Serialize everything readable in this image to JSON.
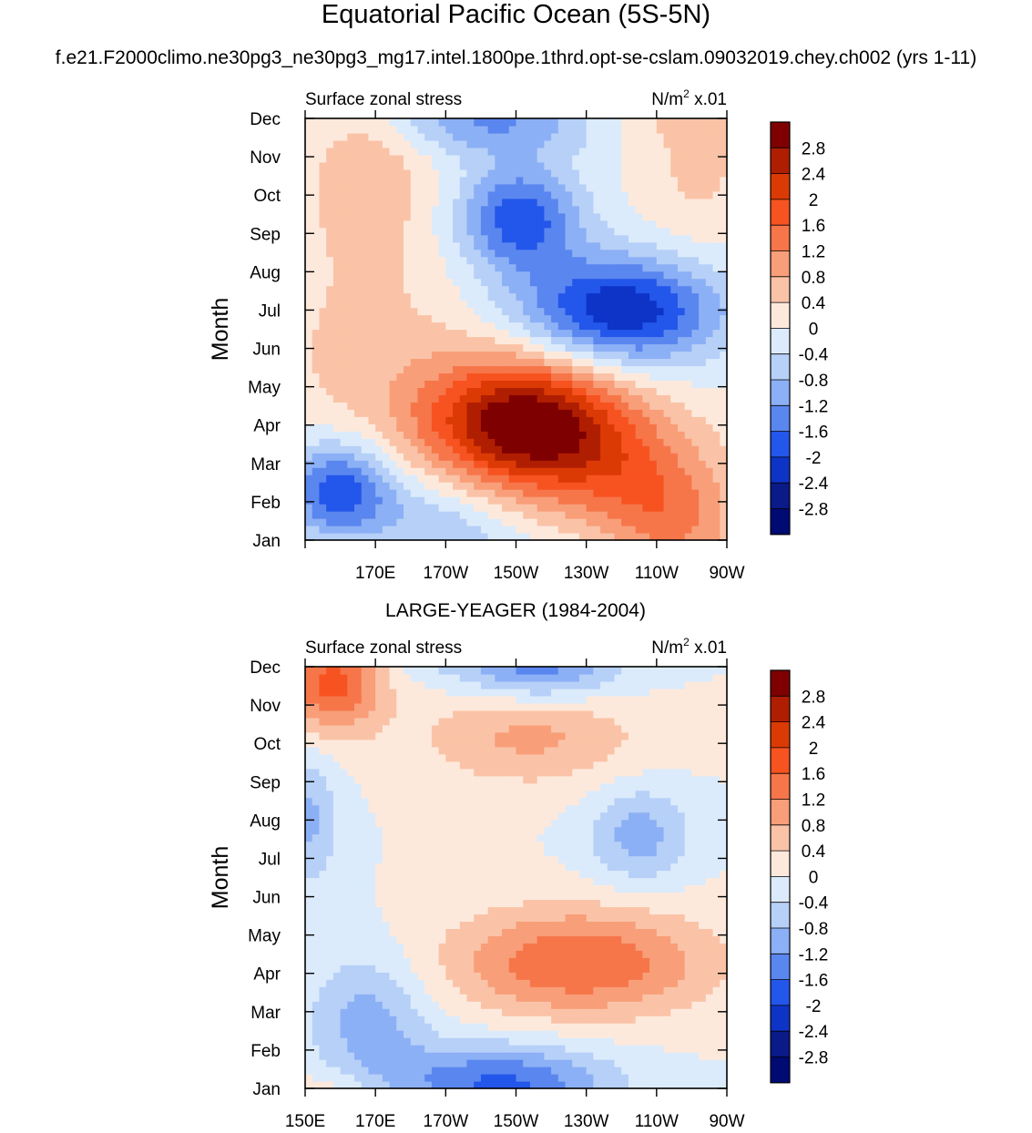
{
  "title": "Equatorial Pacific Ocean (5S-5N)",
  "subtitle": "f.e21.F2000climo.ne30pg3_ne30pg3_mg17.intel.1800pe.1thrd.opt-se-cslam.09032019.chey.ch002 (yrs 1-11)",
  "colorbar": {
    "labels": [
      "2.8",
      "2.4",
      "2",
      "1.6",
      "1.2",
      "0.8",
      "0.4",
      "0",
      "-0.4",
      "-0.8",
      "-1.2",
      "-1.6",
      "-2",
      "-2.4",
      "-2.8"
    ],
    "colors": [
      "#7f0000",
      "#b01e02",
      "#dc3a05",
      "#f75320",
      "#f6764a",
      "#f89e79",
      "#fac3a7",
      "#fde9dc",
      "#dbebfb",
      "#b7d0f8",
      "#8cb0f5",
      "#5a86ef",
      "#2356ea",
      "#0d34c6",
      "#0a1a88",
      "#000a73"
    ]
  },
  "chart_data": [
    {
      "type": "heatmap",
      "panel_title": "",
      "left_label": "Surface zonal stress",
      "right_label_main": "N/m",
      "right_label_sup": "2",
      "right_label_tail": " x.01",
      "ylabel": "Month",
      "yticklabels": [
        "Jan",
        "Feb",
        "Mar",
        "Apr",
        "May",
        "Jun",
        "Jul",
        "Aug",
        "Sep",
        "Oct",
        "Nov",
        "Dec"
      ],
      "xticklabels": [
        "",
        "170E",
        "170W",
        "150W",
        "130W",
        "110W",
        "90W"
      ],
      "xlim_deg_east": [
        150,
        270
      ],
      "levels": [
        -2.8,
        -2.4,
        -2,
        -1.6,
        -1.2,
        -0.8,
        -0.4,
        0,
        0.4,
        0.8,
        1.2,
        1.6,
        2,
        2.4,
        2.8
      ],
      "features": [
        {
          "lon": 160,
          "month": 1.3,
          "value": -2.0,
          "lon_spread": 11,
          "month_spread": 0.9
        },
        {
          "lon": 188,
          "month": 0.4,
          "value": -0.8,
          "lon_spread": 14,
          "month_spread": 0.9
        },
        {
          "lon": 212,
          "month": 3.1,
          "value": 3.1,
          "lon_spread": 20,
          "month_spread": 1.2
        },
        {
          "lon": 238,
          "month": 2.0,
          "value": 1.0,
          "lon_spread": 20,
          "month_spread": 1.1
        },
        {
          "lon": 252,
          "month": 0.6,
          "value": 1.0,
          "lon_spread": 14,
          "month_spread": 1.0
        },
        {
          "lon": 168,
          "month": 5.0,
          "value": 0.5,
          "lon_spread": 22,
          "month_spread": 2.2
        },
        {
          "lon": 211,
          "month": 8.4,
          "value": -1.9,
          "lon_spread": 12,
          "month_spread": 1.0
        },
        {
          "lon": 240,
          "month": 6.0,
          "value": -2.4,
          "lon_spread": 20,
          "month_spread": 1.0
        },
        {
          "lon": 205,
          "month": 10.9,
          "value": -1.1,
          "lon_spread": 20,
          "month_spread": 0.6
        },
        {
          "lon": 168,
          "month": 9.6,
          "value": 0.7,
          "lon_spread": 12,
          "month_spread": 1.5
        },
        {
          "lon": 262,
          "month": 10.0,
          "value": 0.5,
          "lon_spread": 12,
          "month_spread": 1.8
        }
      ]
    },
    {
      "type": "heatmap",
      "panel_title": "LARGE-YEAGER (1984-2004)",
      "left_label": "Surface zonal stress",
      "right_label_main": "N/m",
      "right_label_sup": "2",
      "right_label_tail": " x.01",
      "ylabel": "Month",
      "yticklabels": [
        "Jan",
        "Feb",
        "Mar",
        "Apr",
        "May",
        "Jun",
        "Jul",
        "Aug",
        "Sep",
        "Oct",
        "Nov",
        "Dec"
      ],
      "xticklabels": [
        "150E",
        "170E",
        "170W",
        "150W",
        "130W",
        "110W",
        "90W"
      ],
      "xlim_deg_east": [
        150,
        270
      ],
      "levels": [
        -2.8,
        -2.4,
        -2,
        -1.6,
        -1.2,
        -0.8,
        -0.4,
        0,
        0.4,
        0.8,
        1.2,
        1.6,
        2,
        2.4,
        2.8
      ],
      "features": [
        {
          "lon": 158,
          "month": 10.6,
          "value": 1.8,
          "lon_spread": 10,
          "month_spread": 0.9
        },
        {
          "lon": 205,
          "month": 0.2,
          "value": -1.6,
          "lon_spread": 22,
          "month_spread": 0.7
        },
        {
          "lon": 168,
          "month": 1.8,
          "value": -1.0,
          "lon_spread": 12,
          "month_spread": 1.2
        },
        {
          "lon": 228,
          "month": 3.3,
          "value": 1.6,
          "lon_spread": 26,
          "month_spread": 1.0
        },
        {
          "lon": 214,
          "month": 9.2,
          "value": 0.9,
          "lon_spread": 22,
          "month_spread": 0.9
        },
        {
          "lon": 245,
          "month": 6.6,
          "value": -1.0,
          "lon_spread": 10,
          "month_spread": 0.9
        },
        {
          "lon": 217,
          "month": 10.9,
          "value": -1.2,
          "lon_spread": 16,
          "month_spread": 0.6
        },
        {
          "lon": 151,
          "month": 7.0,
          "value": -0.9,
          "lon_spread": 6,
          "month_spread": 1.2
        }
      ]
    }
  ]
}
